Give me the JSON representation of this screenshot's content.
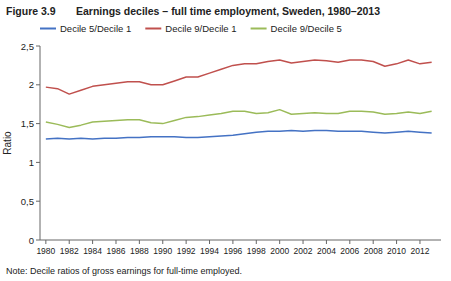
{
  "chart_data": {
    "type": "line",
    "title": "Figure 3.9",
    "subtitle": "Earnings deciles – full time employment, Sweden, 1980–2013",
    "annotations": [
      "Note: Decile ratios of gross earnings for full-time employed."
    ],
    "y_label": "Ratio",
    "x": [
      1980,
      1981,
      1982,
      1983,
      1984,
      1985,
      1986,
      1987,
      1988,
      1989,
      1990,
      1991,
      1992,
      1993,
      1994,
      1995,
      1996,
      1997,
      1998,
      1999,
      2000,
      2001,
      2002,
      2003,
      2004,
      2005,
      2006,
      2007,
      2008,
      2009,
      2010,
      2011,
      2012,
      2013
    ],
    "series": [
      {
        "name": "Decile 5/Decile 1",
        "color": "#4472C4",
        "values": [
          1.3,
          1.31,
          1.3,
          1.31,
          1.3,
          1.31,
          1.31,
          1.32,
          1.32,
          1.33,
          1.33,
          1.33,
          1.32,
          1.32,
          1.33,
          1.34,
          1.35,
          1.37,
          1.39,
          1.4,
          1.4,
          1.41,
          1.4,
          1.41,
          1.41,
          1.4,
          1.4,
          1.4,
          1.39,
          1.38,
          1.39,
          1.4,
          1.39,
          1.38
        ]
      },
      {
        "name": "Decile 9/Decile 1",
        "color": "#C0504D",
        "values": [
          1.97,
          1.95,
          1.88,
          1.93,
          1.98,
          2.0,
          2.02,
          2.04,
          2.04,
          2.0,
          2.0,
          2.05,
          2.1,
          2.1,
          2.15,
          2.2,
          2.25,
          2.27,
          2.27,
          2.3,
          2.32,
          2.28,
          2.3,
          2.32,
          2.31,
          2.29,
          2.32,
          2.32,
          2.3,
          2.24,
          2.27,
          2.32,
          2.27,
          2.29
        ]
      },
      {
        "name": "Decile 9/Decile 5",
        "color": "#9BBB59",
        "values": [
          1.52,
          1.49,
          1.45,
          1.48,
          1.52,
          1.53,
          1.54,
          1.55,
          1.55,
          1.51,
          1.5,
          1.54,
          1.58,
          1.59,
          1.61,
          1.63,
          1.66,
          1.66,
          1.63,
          1.64,
          1.68,
          1.62,
          1.63,
          1.64,
          1.63,
          1.63,
          1.66,
          1.66,
          1.65,
          1.62,
          1.63,
          1.65,
          1.63,
          1.66
        ]
      }
    ],
    "xlim": [
      1979.5,
      2013.8
    ],
    "xticks": [
      1980,
      1982,
      1984,
      1986,
      1988,
      1990,
      1992,
      1994,
      1996,
      1998,
      2000,
      2002,
      2004,
      2006,
      2008,
      2010,
      2012
    ],
    "ylim": [
      0,
      2.5
    ],
    "yticks": [
      0,
      {
        "value": 0.5,
        "label": "0,5"
      },
      1,
      {
        "value": 1.5,
        "label": "1,5"
      },
      2,
      {
        "value": 2.5,
        "label": "2,5"
      }
    ],
    "grid": false,
    "legend": "upper left"
  }
}
